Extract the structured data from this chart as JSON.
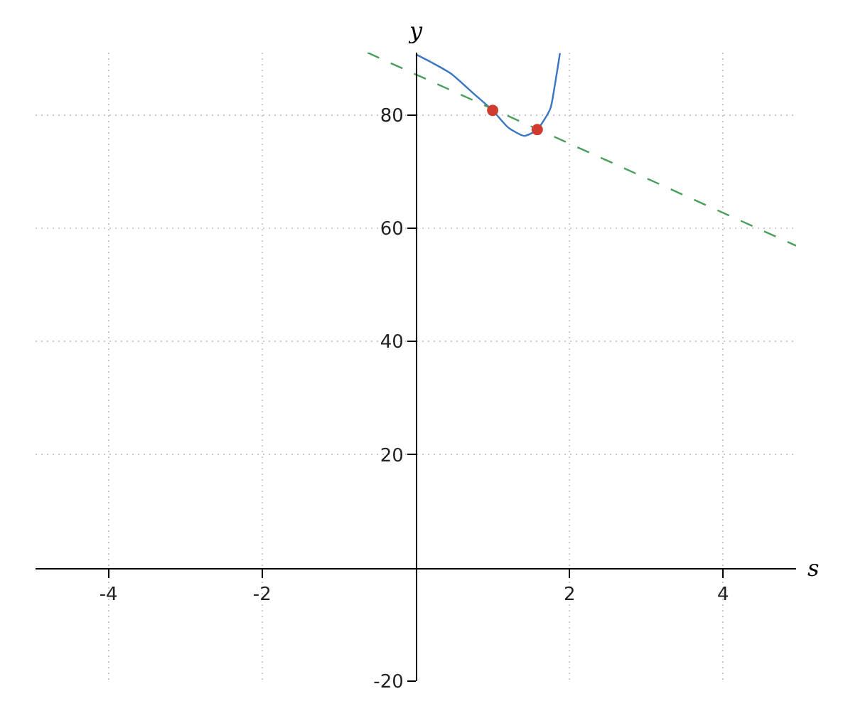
{
  "chart_data": {
    "type": "line",
    "xlabel": "s",
    "ylabel": "y",
    "xlim": [
      -4.95,
      4.95
    ],
    "ylim": [
      -20,
      91
    ],
    "xticks": [
      -4,
      -2,
      2,
      4
    ],
    "yticks": [
      -20,
      20,
      40,
      60,
      80
    ],
    "grid": true,
    "series": [
      {
        "color": "#3a75c4",
        "line_style": "solid",
        "x": [
          0,
          0.2,
          0.457,
          0.765,
          1.0,
          1.2,
          1.41,
          1.58,
          1.75,
          1.81,
          1.876
        ],
        "values": [
          90.7,
          89.3,
          87.3,
          83.6,
          80.8,
          77.8,
          76.3,
          77.4,
          81.1,
          85.3,
          90.9
        ]
      },
      {
        "color": "#4a9e5c",
        "line_style": "dashed",
        "x": [
          -0.63,
          4.95
        ],
        "values": [
          91,
          56.9
        ]
      },
      {
        "type": "scatter",
        "color": "#d03b2f",
        "marker": "circle",
        "x": [
          1.0,
          1.58
        ],
        "values": [
          80.8,
          77.4
        ]
      }
    ]
  }
}
